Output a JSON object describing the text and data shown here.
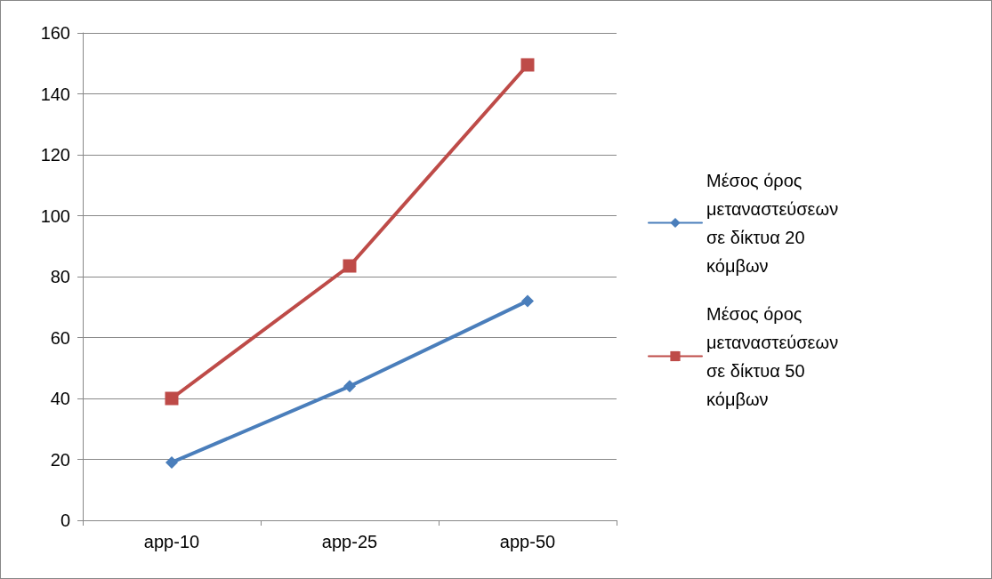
{
  "chart_data": {
    "type": "line",
    "categories": [
      "app-10",
      "app-25",
      "app-50"
    ],
    "series": [
      {
        "name": "Μέσος όρος μεταναστεύσεων σε δίκτυα 20 κόμβων",
        "color": "#4a7ebb",
        "marker": "diamond",
        "values": [
          19,
          44,
          72
        ]
      },
      {
        "name": "Μέσος όρος μεταναστεύσεων σε δίκτυα 50 κόμβων",
        "color": "#be4b48",
        "marker": "square",
        "values": [
          40,
          83.5,
          149.5
        ]
      }
    ],
    "ylim": [
      0,
      160
    ],
    "yticks": [
      0,
      20,
      40,
      60,
      80,
      100,
      120,
      140,
      160
    ],
    "grid": "y",
    "legend": "right",
    "line_style": "solid"
  }
}
